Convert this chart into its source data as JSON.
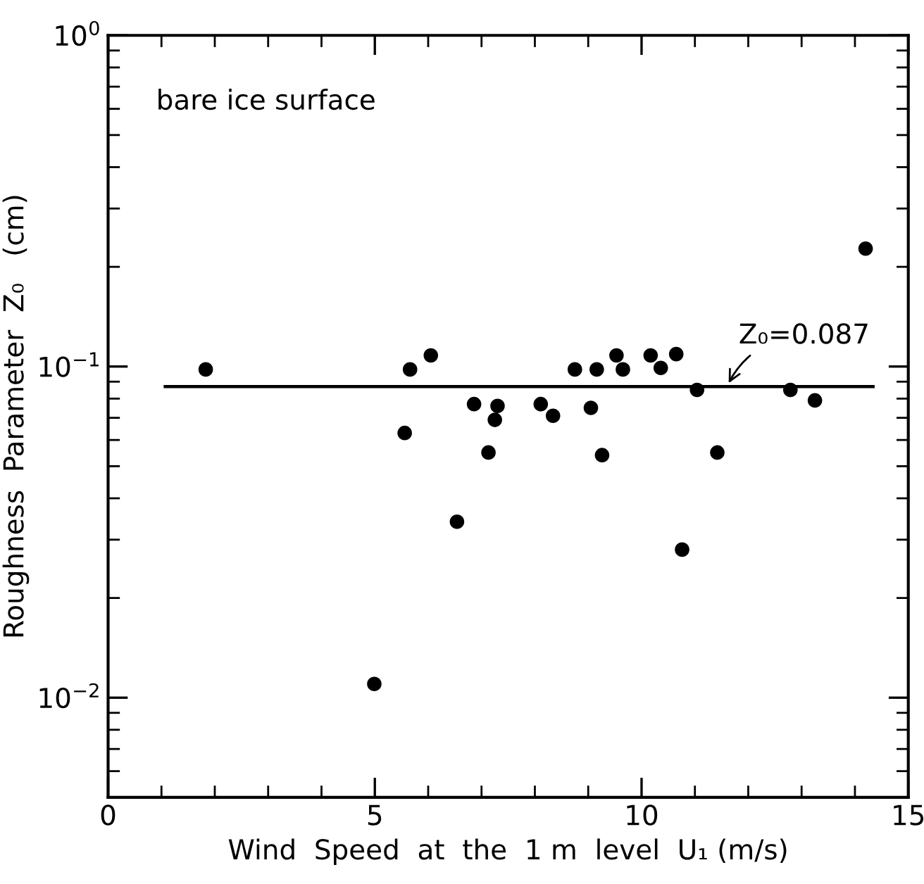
{
  "chart_data": {
    "type": "scatter",
    "xlabel": "Wind  Speed  at  the  1 m  level  U₁ (m/s)",
    "ylabel": "Roughness  Parameter  Z₀   (cm)",
    "annotations": [
      "bare ice surface",
      {
        "text": "Z₀=0.087",
        "x": 11.6,
        "y": 0.087
      }
    ],
    "log": "y",
    "grid": false,
    "marker": "circle",
    "xlim": [
      0,
      15
    ],
    "ylim": [
      0.005,
      1
    ],
    "xticks": [
      0,
      {
        "value": 1,
        "label": null
      },
      {
        "value": 2,
        "label": null
      },
      {
        "value": 3,
        "label": null
      },
      {
        "value": 4,
        "label": null
      },
      5,
      {
        "value": 6,
        "label": null
      },
      {
        "value": 7,
        "label": null
      },
      {
        "value": 8,
        "label": null
      },
      {
        "value": 9,
        "label": null
      },
      10,
      {
        "value": 11,
        "label": null
      },
      {
        "value": 12,
        "label": null
      },
      {
        "value": 13,
        "label": null
      },
      {
        "value": 14,
        "label": null
      },
      15
    ],
    "yticks": [
      {
        "value": 0.005,
        "label": null
      },
      {
        "value": 0.006,
        "label": null
      },
      {
        "value": 0.007,
        "label": null
      },
      {
        "value": 0.008,
        "label": null
      },
      {
        "value": 0.009,
        "label": null
      },
      {
        "value": 0.01,
        "label": "10$^{−2}$"
      },
      {
        "value": 0.02,
        "label": null
      },
      {
        "value": 0.03,
        "label": null
      },
      {
        "value": 0.04,
        "label": null
      },
      {
        "value": 0.05,
        "label": null
      },
      {
        "value": 0.06,
        "label": null
      },
      {
        "value": 0.07,
        "label": null
      },
      {
        "value": 0.08,
        "label": null
      },
      {
        "value": 0.09,
        "label": null
      },
      {
        "value": 0.1,
        "label": "10$^{−1}$"
      },
      {
        "value": 0.2,
        "label": null
      },
      {
        "value": 0.3,
        "label": null
      },
      {
        "value": 0.4,
        "label": null
      },
      {
        "value": 0.5,
        "label": null
      },
      {
        "value": 0.6,
        "label": null
      },
      {
        "value": 0.7,
        "label": null
      },
      {
        "value": 0.8,
        "label": null
      },
      {
        "value": 0.9,
        "label": null
      },
      {
        "value": 1,
        "label": "10$^{0}$"
      }
    ],
    "series": [
      {
        "color": "#000000",
        "x": [
          1.83,
          4.99,
          5.56,
          5.66,
          6.05,
          6.54,
          6.86,
          7.13,
          7.25,
          7.3,
          8.11,
          8.34,
          8.75,
          9.05,
          9.16,
          9.26,
          9.53,
          9.65,
          10.17,
          10.36,
          10.65,
          10.76,
          11.04,
          11.42,
          12.79,
          13.25,
          14.2
        ],
        "values": [
          0.098,
          0.011,
          0.063,
          0.098,
          0.108,
          0.034,
          0.077,
          0.055,
          0.069,
          0.076,
          0.077,
          0.071,
          0.098,
          0.075,
          0.098,
          0.054,
          0.108,
          0.098,
          0.108,
          0.099,
          0.109,
          0.028,
          0.085,
          0.055,
          0.085,
          0.079,
          0.227
        ]
      },
      {
        "type": "line",
        "color": "#000000",
        "x": [
          1.07,
          14.34
        ],
        "values": [
          0.087,
          0.087
        ],
        "marker": "none",
        "line_style": "solid"
      }
    ]
  }
}
